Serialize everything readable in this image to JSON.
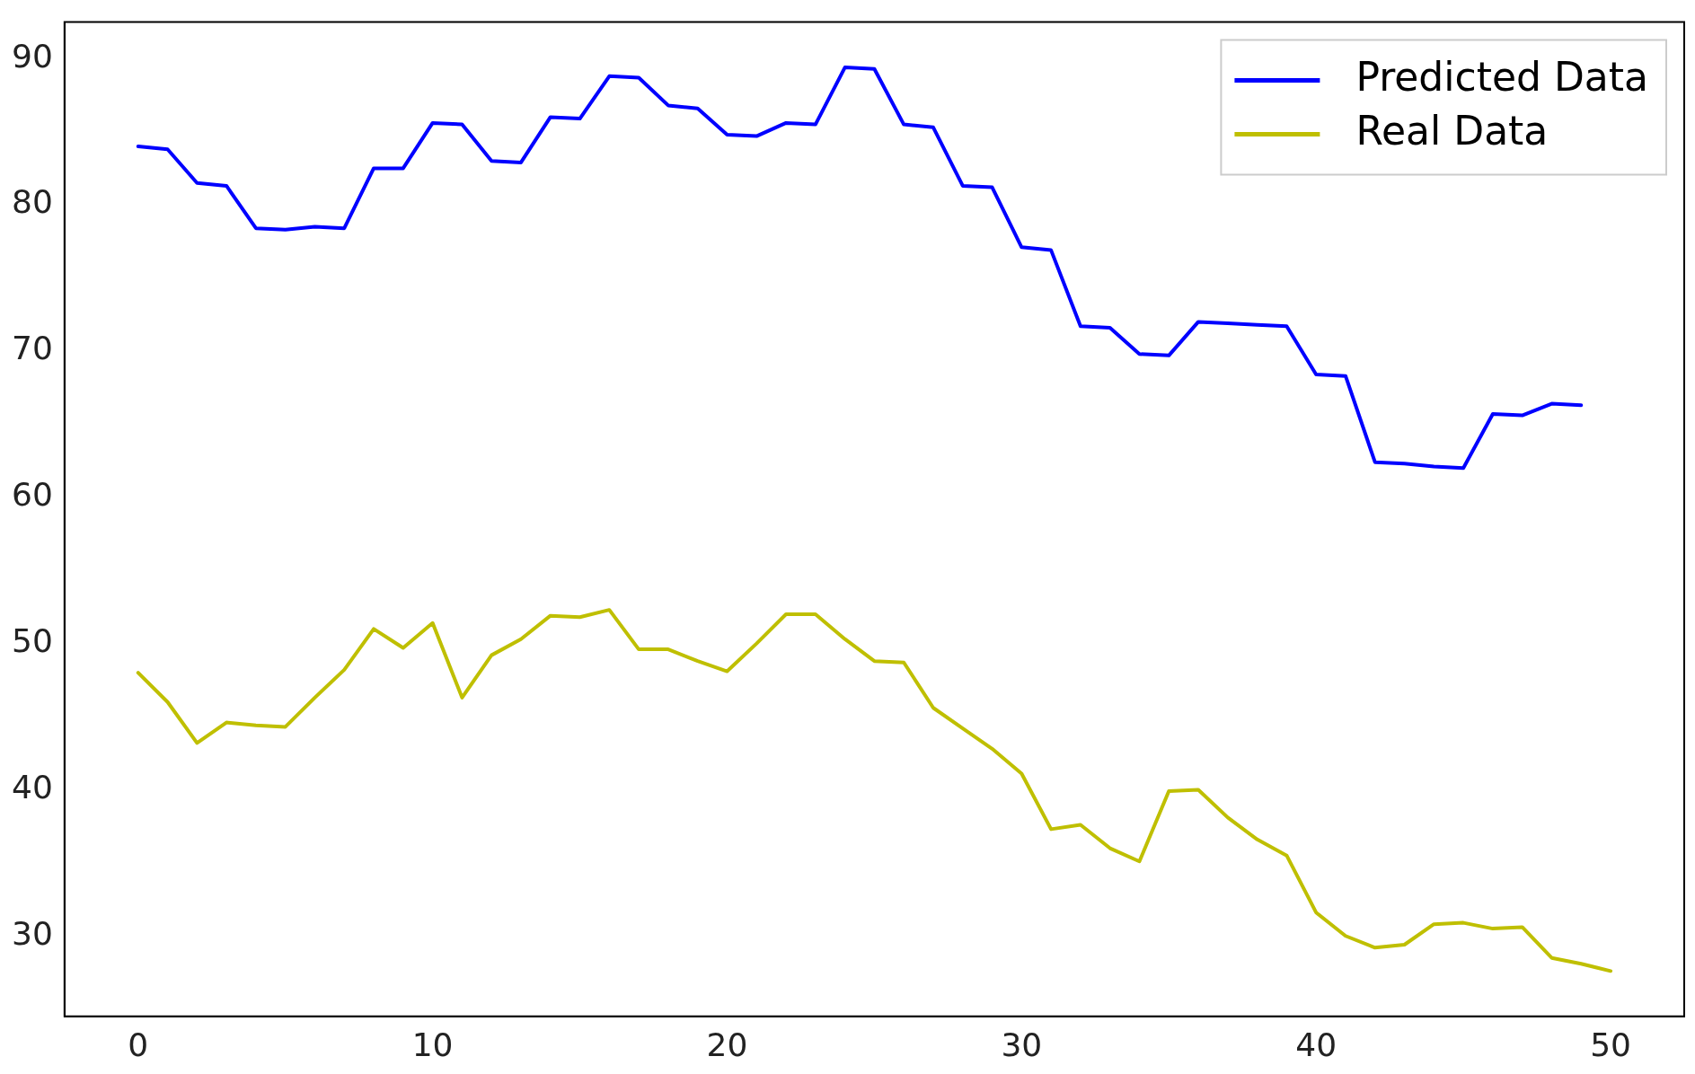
{
  "chart_data": {
    "type": "line",
    "x": [
      0,
      1,
      2,
      3,
      4,
      5,
      6,
      7,
      8,
      9,
      10,
      11,
      12,
      13,
      14,
      15,
      16,
      17,
      18,
      19,
      20,
      21,
      22,
      23,
      24,
      25,
      26,
      27,
      28,
      29,
      30,
      31,
      32,
      33,
      34,
      35,
      36,
      37,
      38,
      39,
      40,
      41,
      42,
      43,
      44,
      45,
      46,
      47,
      48,
      49,
      50
    ],
    "series": [
      {
        "name": "Predicted Data",
        "color": "#0000ff",
        "x": [
          0,
          1,
          2,
          3,
          4,
          5,
          6,
          7,
          8,
          9,
          10,
          11,
          12,
          13,
          14,
          15,
          16,
          17,
          18,
          19,
          20,
          21,
          22,
          23,
          24,
          25,
          26,
          27,
          28,
          29,
          30,
          31,
          32,
          33,
          34,
          35,
          36,
          37,
          38,
          39,
          40,
          41,
          42,
          43,
          44,
          45,
          46,
          47,
          48,
          49
        ],
        "values": [
          84,
          83.8,
          81.5,
          81.3,
          78.4,
          78.3,
          78.5,
          78.4,
          82.5,
          82.5,
          85.6,
          85.5,
          83,
          82.9,
          86,
          85.9,
          88.8,
          88.7,
          86.8,
          86.6,
          84.8,
          84.7,
          85.6,
          85.5,
          89.4,
          89.3,
          85.5,
          85.3,
          81.3,
          81.2,
          77.1,
          76.9,
          71.7,
          71.6,
          69.8,
          69.7,
          72,
          71.9,
          71.8,
          71.7,
          68.4,
          68.3,
          62.4,
          62.3,
          62.1,
          62,
          65.7,
          65.6,
          66.4,
          66.3
        ]
      },
      {
        "name": "Real Data",
        "color": "#bfbf00",
        "values": [
          48,
          46,
          43.2,
          44.6,
          44.4,
          44.3,
          46.3,
          48.2,
          51,
          49.7,
          51.4,
          46.3,
          49.2,
          50.3,
          51.9,
          51.8,
          52.3,
          49.6,
          49.6,
          48.8,
          48.1,
          50,
          52,
          52,
          50.3,
          48.8,
          48.7,
          45.6,
          44.2,
          42.8,
          41.1,
          37.3,
          37.6,
          36,
          35.1,
          39.9,
          40,
          38.1,
          36.6,
          35.5,
          31.6,
          30,
          29.2,
          29.4,
          30.8,
          30.9,
          30.5,
          30.6,
          28.5,
          28.1,
          27.6
        ]
      }
    ],
    "xlim": [
      -2.5,
      52.5
    ],
    "xticks": [
      0,
      10,
      20,
      30,
      40,
      50
    ],
    "ylim": [
      24.5,
      92.5
    ],
    "yticks": [
      30,
      40,
      50,
      60,
      70,
      80,
      90
    ],
    "grid": false,
    "legend": "top right",
    "line_style": "solid",
    "marker": "none"
  }
}
